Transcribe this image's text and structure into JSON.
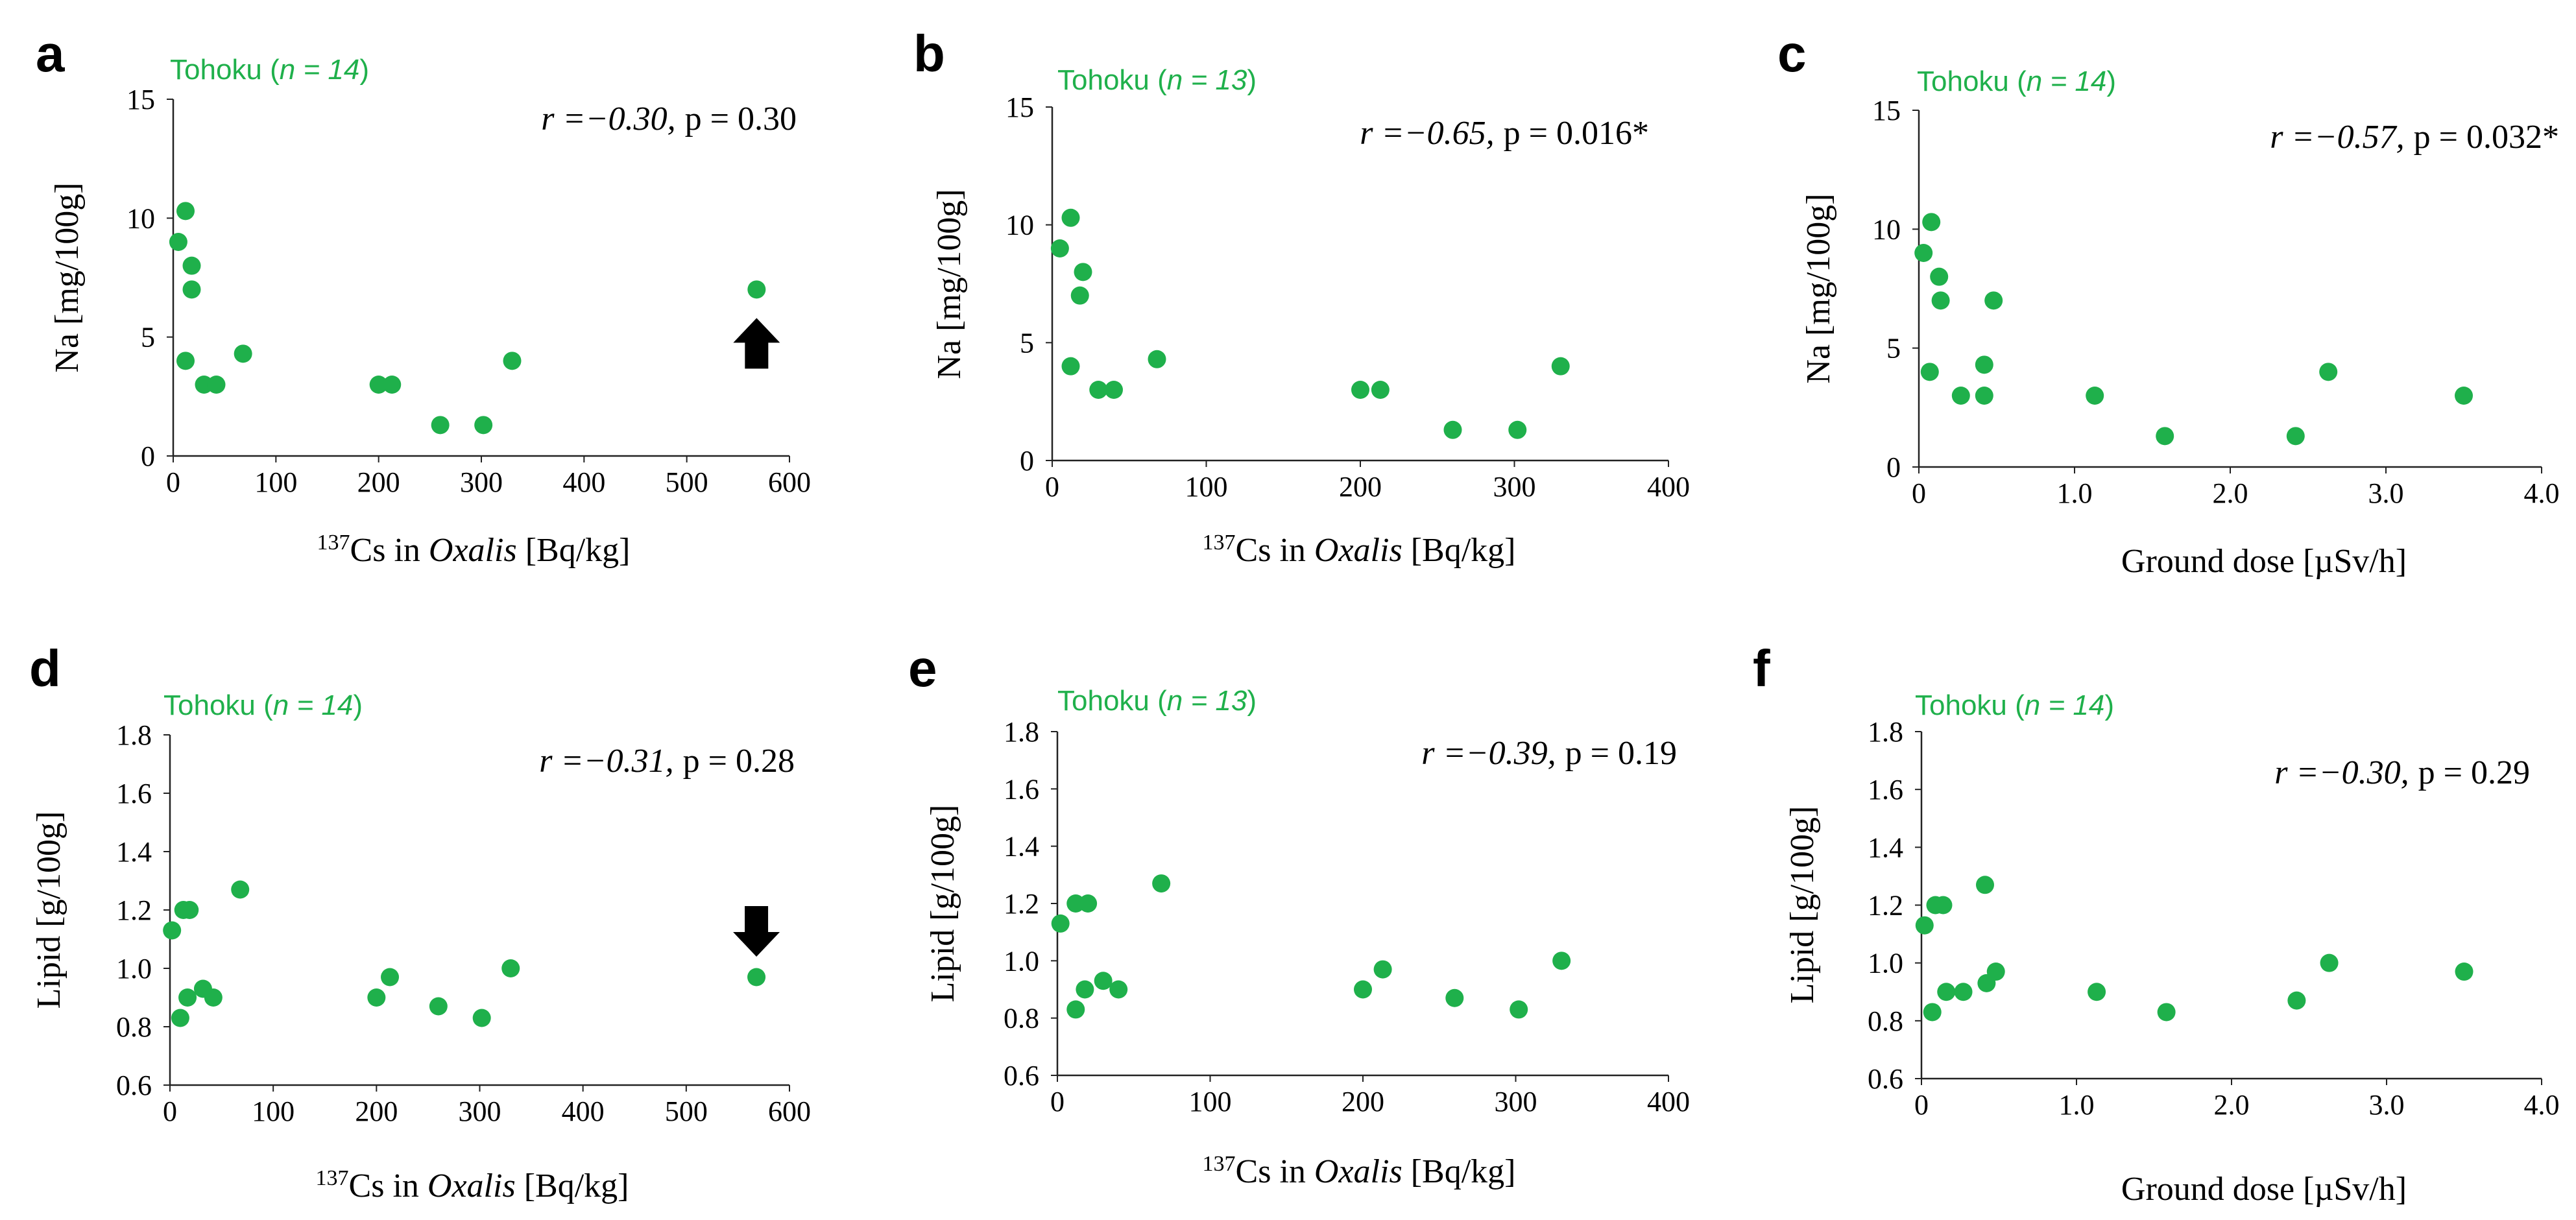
{
  "figure": {
    "colors": {
      "points": "#1fb04b",
      "group_label": "#1fb04b",
      "arrow": "#000000"
    }
  },
  "chart_data": [
    {
      "panel": "a",
      "type": "scatter",
      "group_label": {
        "name": "Tohoku",
        "n_label": "n = 14"
      },
      "stat": {
        "r": "r =−0.30,",
        "p": "p = 0.30"
      },
      "xlabel": {
        "sup": "137",
        "pre": "Cs in ",
        "ital": "Oxalis",
        "post": " [Bq/kg]"
      },
      "ylabel": "Na [mg/100g]",
      "xlim": [
        0,
        600
      ],
      "ylim": [
        0,
        15
      ],
      "xticks": [
        0,
        100,
        200,
        300,
        400,
        500,
        600
      ],
      "xtick_labels": [
        "0",
        "100",
        "200",
        "300",
        "400",
        "500",
        "600"
      ],
      "yticks": [
        0,
        5,
        10,
        15
      ],
      "ytick_labels": [
        "0",
        "5",
        "10",
        "15"
      ],
      "arrow": {
        "direction": "up",
        "x": 568
      },
      "points": [
        [
          5,
          9.0
        ],
        [
          12,
          10.3
        ],
        [
          12,
          4.0
        ],
        [
          18,
          8.0
        ],
        [
          18,
          7.0
        ],
        [
          30,
          3.0
        ],
        [
          42,
          3.0
        ],
        [
          68,
          4.3
        ],
        [
          200,
          3.0
        ],
        [
          213,
          3.0
        ],
        [
          260,
          1.3
        ],
        [
          302,
          1.3
        ],
        [
          330,
          4.0
        ],
        [
          568,
          7.0
        ]
      ]
    },
    {
      "panel": "b",
      "type": "scatter",
      "group_label": {
        "name": "Tohoku",
        "n_label": "n = 13"
      },
      "stat": {
        "r": "r =−0.65,",
        "p": "p = 0.016*"
      },
      "xlabel": {
        "sup": "137",
        "pre": "Cs in ",
        "ital": "Oxalis",
        "post": " [Bq/kg]"
      },
      "ylabel": "Na [mg/100g]",
      "xlim": [
        0,
        400
      ],
      "ylim": [
        0,
        15
      ],
      "xticks": [
        0,
        100,
        200,
        300,
        400
      ],
      "xtick_labels": [
        "0",
        "100",
        "200",
        "300",
        "400"
      ],
      "yticks": [
        0,
        5,
        10,
        15
      ],
      "ytick_labels": [
        "0",
        "5",
        "10",
        "15"
      ],
      "points": [
        [
          5,
          9.0
        ],
        [
          12,
          10.3
        ],
        [
          12,
          4.0
        ],
        [
          20,
          8.0
        ],
        [
          18,
          7.0
        ],
        [
          30,
          3.0
        ],
        [
          40,
          3.0
        ],
        [
          68,
          4.3
        ],
        [
          200,
          3.0
        ],
        [
          213,
          3.0
        ],
        [
          260,
          1.3
        ],
        [
          302,
          1.3
        ],
        [
          330,
          4.0
        ]
      ]
    },
    {
      "panel": "c",
      "type": "scatter",
      "group_label": {
        "name": "Tohoku",
        "n_label": "n = 14"
      },
      "stat": {
        "r": "r =−0.57,",
        "p": "p = 0.032*"
      },
      "xlabel": {
        "sup": "",
        "pre": "Ground dose [µSv/h]",
        "ital": "",
        "post": ""
      },
      "ylabel": "Na [mg/100g]",
      "xlim": [
        0,
        4.0
      ],
      "ylim": [
        0,
        15
      ],
      "xticks": [
        0,
        1.0,
        2.0,
        3.0,
        4.0
      ],
      "xtick_labels": [
        "0",
        "1.0",
        "2.0",
        "3.0",
        "4.0"
      ],
      "yticks": [
        0,
        5,
        10,
        15
      ],
      "ytick_labels": [
        "0",
        "5",
        "10",
        "15"
      ],
      "points": [
        [
          0.03,
          9.0
        ],
        [
          0.08,
          10.3
        ],
        [
          0.07,
          4.0
        ],
        [
          0.13,
          8.0
        ],
        [
          0.14,
          7.0
        ],
        [
          0.27,
          3.0
        ],
        [
          0.42,
          4.3
        ],
        [
          0.42,
          3.0
        ],
        [
          0.48,
          7.0
        ],
        [
          1.13,
          3.0
        ],
        [
          1.58,
          1.3
        ],
        [
          2.42,
          1.3
        ],
        [
          2.63,
          4.0
        ],
        [
          3.5,
          3.0
        ]
      ]
    },
    {
      "panel": "d",
      "type": "scatter",
      "group_label": {
        "name": "Tohoku",
        "n_label": "n = 14"
      },
      "stat": {
        "r": "r =−0.31,",
        "p": "p = 0.28"
      },
      "xlabel": {
        "sup": "137",
        "pre": "Cs in ",
        "ital": "Oxalis",
        "post": " [Bq/kg]"
      },
      "ylabel": "Lipid [g/100g]",
      "xlim": [
        0,
        600
      ],
      "ylim": [
        0.6,
        1.8
      ],
      "xticks": [
        0,
        100,
        200,
        300,
        400,
        500,
        600
      ],
      "xtick_labels": [
        "0",
        "100",
        "200",
        "300",
        "400",
        "500",
        "600"
      ],
      "yticks": [
        0.6,
        0.8,
        1.0,
        1.2,
        1.4,
        1.6,
        1.8
      ],
      "ytick_labels": [
        "0.6",
        "0.8",
        "1.0",
        "1.2",
        "1.4",
        "1.6",
        "1.8"
      ],
      "arrow": {
        "direction": "down",
        "x": 568
      },
      "points": [
        [
          2,
          1.13
        ],
        [
          10,
          0.83
        ],
        [
          13,
          1.2
        ],
        [
          19,
          1.2
        ],
        [
          17,
          0.9
        ],
        [
          32,
          0.93
        ],
        [
          42,
          0.9
        ],
        [
          68,
          1.27
        ],
        [
          200,
          0.9
        ],
        [
          213,
          0.97
        ],
        [
          260,
          0.87
        ],
        [
          302,
          0.83
        ],
        [
          330,
          1.0
        ],
        [
          568,
          0.97
        ]
      ]
    },
    {
      "panel": "e",
      "type": "scatter",
      "group_label": {
        "name": "Tohoku",
        "n_label": "n = 13"
      },
      "stat": {
        "r": "r =−0.39,",
        "p": "p = 0.19"
      },
      "xlabel": {
        "sup": "137",
        "pre": "Cs in ",
        "ital": "Oxalis",
        "post": " [Bq/kg]"
      },
      "ylabel": "Lipid [g/100g]",
      "xlim": [
        0,
        400
      ],
      "ylim": [
        0.6,
        1.8
      ],
      "xticks": [
        0,
        100,
        200,
        300,
        400
      ],
      "xtick_labels": [
        "0",
        "100",
        "200",
        "300",
        "400"
      ],
      "yticks": [
        0.6,
        0.8,
        1.0,
        1.2,
        1.4,
        1.6,
        1.8
      ],
      "ytick_labels": [
        "0.6",
        "0.8",
        "1.0",
        "1.2",
        "1.4",
        "1.6",
        "1.8"
      ],
      "points": [
        [
          2,
          1.13
        ],
        [
          12,
          0.83
        ],
        [
          12,
          1.2
        ],
        [
          20,
          1.2
        ],
        [
          18,
          0.9
        ],
        [
          30,
          0.93
        ],
        [
          40,
          0.9
        ],
        [
          68,
          1.27
        ],
        [
          200,
          0.9
        ],
        [
          213,
          0.97
        ],
        [
          260,
          0.87
        ],
        [
          302,
          0.83
        ],
        [
          330,
          1.0
        ]
      ]
    },
    {
      "panel": "f",
      "type": "scatter",
      "group_label": {
        "name": "Tohoku",
        "n_label": "n = 14"
      },
      "stat": {
        "r": "r =−0.30,",
        "p": "p = 0.29"
      },
      "xlabel": {
        "sup": "",
        "pre": "Ground dose [µSv/h]",
        "ital": "",
        "post": ""
      },
      "ylabel": "Lipid [g/100g]",
      "xlim": [
        0,
        4.0
      ],
      "ylim": [
        0.6,
        1.8
      ],
      "xticks": [
        0,
        1.0,
        2.0,
        3.0,
        4.0
      ],
      "xtick_labels": [
        "0",
        "1.0",
        "2.0",
        "3.0",
        "4.0"
      ],
      "yticks": [
        0.6,
        0.8,
        1.0,
        1.2,
        1.4,
        1.6,
        1.8
      ],
      "ytick_labels": [
        "0.6",
        "0.8",
        "1.0",
        "1.2",
        "1.4",
        "1.6",
        "1.8"
      ],
      "points": [
        [
          0.02,
          1.13
        ],
        [
          0.07,
          0.83
        ],
        [
          0.09,
          1.2
        ],
        [
          0.14,
          1.2
        ],
        [
          0.16,
          0.9
        ],
        [
          0.27,
          0.9
        ],
        [
          0.41,
          1.27
        ],
        [
          0.42,
          0.93
        ],
        [
          0.48,
          0.97
        ],
        [
          1.13,
          0.9
        ],
        [
          1.58,
          0.83
        ],
        [
          2.42,
          0.87
        ],
        [
          2.63,
          1.0
        ],
        [
          3.5,
          0.97
        ]
      ]
    }
  ]
}
